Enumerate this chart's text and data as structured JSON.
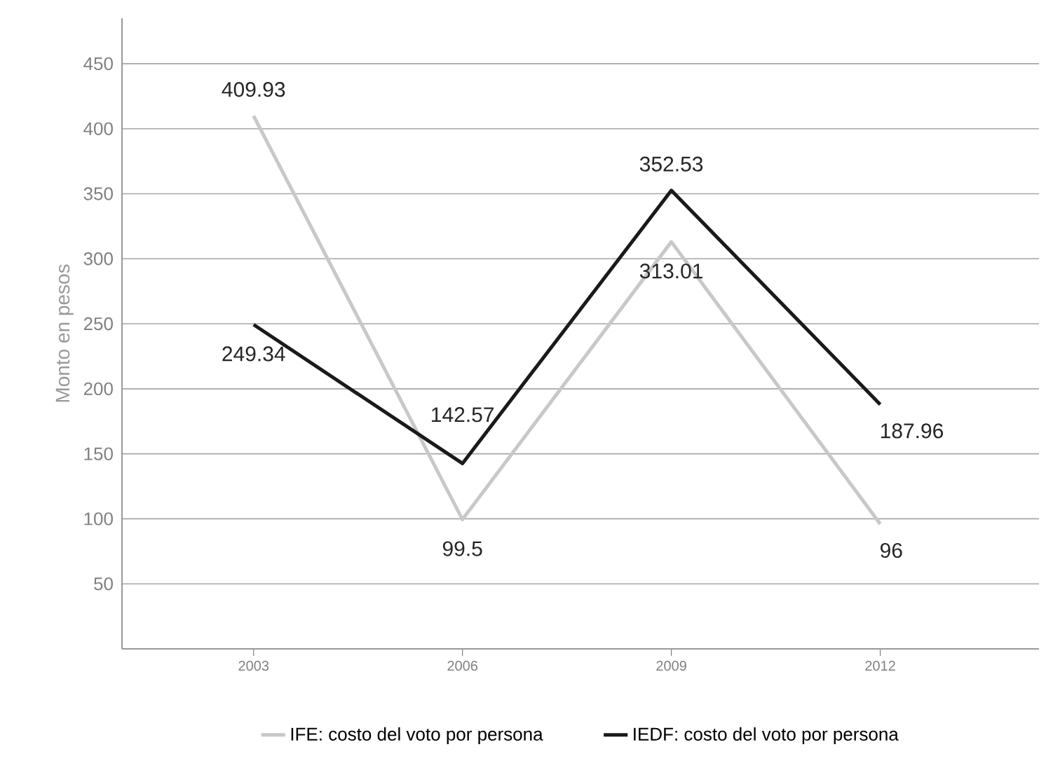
{
  "chart_data": {
    "type": "line",
    "ylabel": "Monto en pesos",
    "categories": [
      "2003",
      "2006",
      "2009",
      "2012"
    ],
    "series": [
      {
        "name": "IFE: costo del voto por persona",
        "color": "#c8c8c8",
        "values": [
          409.93,
          99.5,
          313.01,
          96
        ]
      },
      {
        "name": "IEDF: costo del voto por persona",
        "color": "#1a1a1a",
        "values": [
          249.34,
          142.57,
          352.53,
          187.96
        ]
      }
    ],
    "ylim": [
      0,
      485
    ],
    "yticks": [
      50,
      100,
      150,
      200,
      250,
      300,
      350,
      400,
      450
    ],
    "grid": "y",
    "legend": "bottom",
    "data_labels": true,
    "marker": "none",
    "line_style": "solid"
  }
}
